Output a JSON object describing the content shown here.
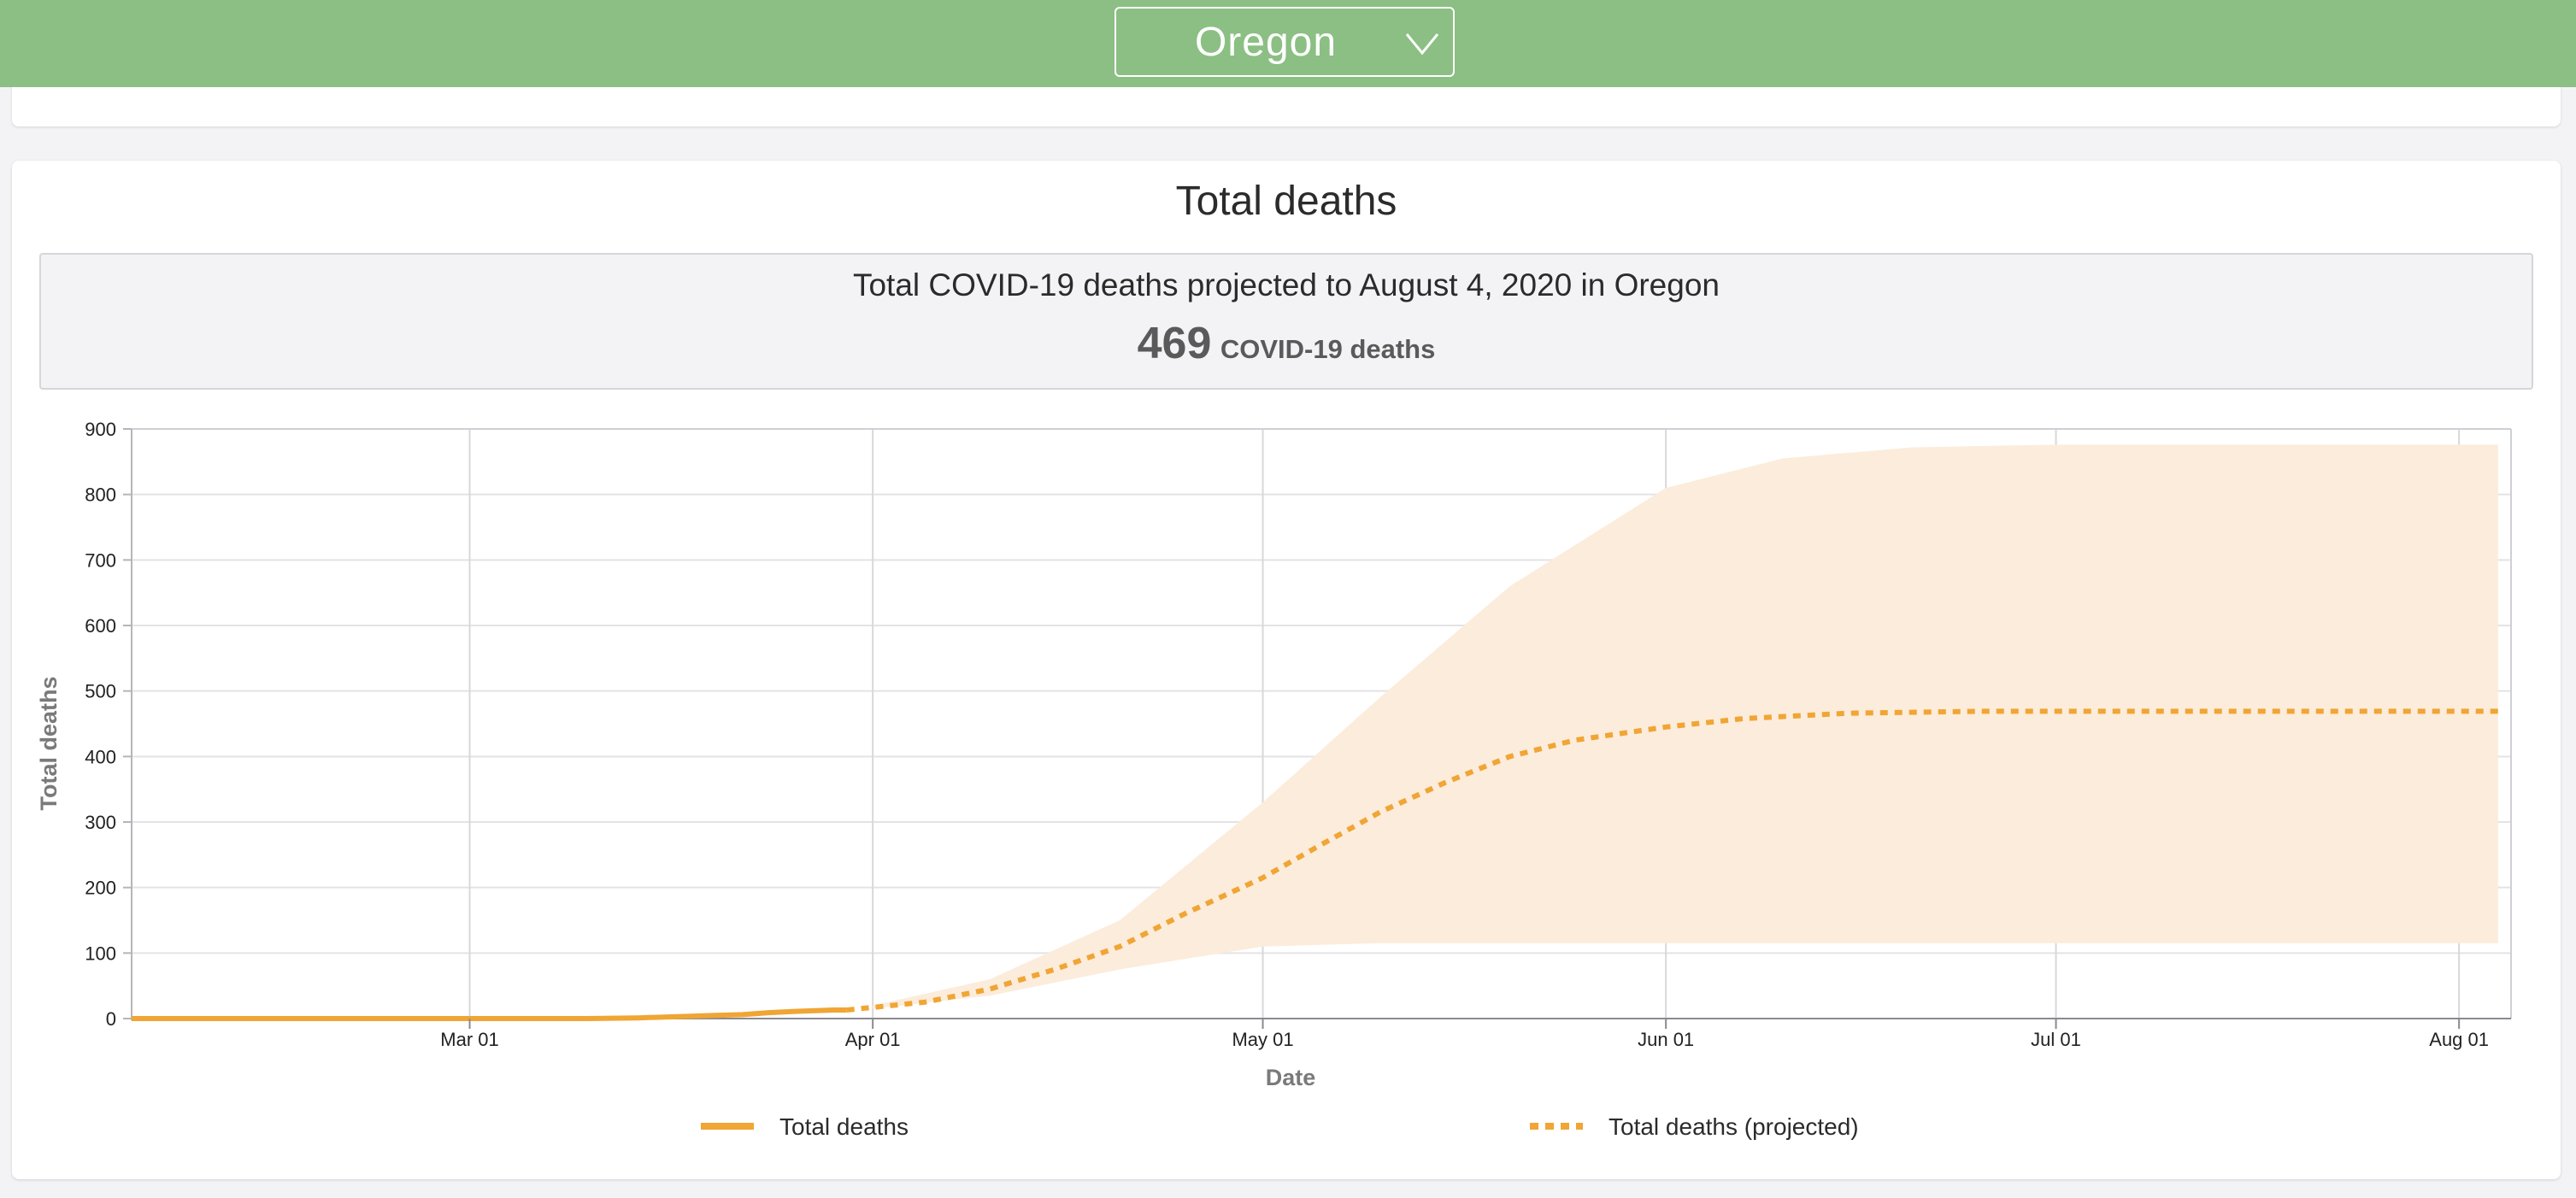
{
  "header": {
    "selected_state": "Oregon",
    "background_color": "#8bbf83"
  },
  "card": {
    "title": "Total deaths",
    "summary_text": "Total COVID-19 deaths projected to August 4, 2020 in Oregon",
    "summary_value": "469",
    "summary_unit": "COVID-19 deaths"
  },
  "chart_data": {
    "type": "line",
    "title": "Total deaths",
    "xlabel": "Date",
    "ylabel": "Total deaths",
    "ylim": [
      0,
      900
    ],
    "yticks": [
      0,
      100,
      200,
      300,
      400,
      500,
      600,
      700,
      800,
      900
    ],
    "x_range": [
      "2020-02-04",
      "2020-08-05"
    ],
    "xticks": [
      {
        "date": "2020-03-01",
        "label": "Mar 01"
      },
      {
        "date": "2020-04-01",
        "label": "Apr 01"
      },
      {
        "date": "2020-05-01",
        "label": "May 01"
      },
      {
        "date": "2020-06-01",
        "label": "Jun 01"
      },
      {
        "date": "2020-07-01",
        "label": "Jul 01"
      },
      {
        "date": "2020-08-01",
        "label": "Aug 01"
      }
    ],
    "grid": true,
    "colors": {
      "line": "#f0a534",
      "band": "#fcecdc"
    },
    "series": [
      {
        "name": "Total deaths",
        "style": "solid",
        "points": [
          [
            "2020-02-04",
            0
          ],
          [
            "2020-03-01",
            0
          ],
          [
            "2020-03-10",
            0
          ],
          [
            "2020-03-14",
            1
          ],
          [
            "2020-03-17",
            3
          ],
          [
            "2020-03-20",
            5
          ],
          [
            "2020-03-22",
            6
          ],
          [
            "2020-03-24",
            9
          ],
          [
            "2020-03-26",
            11
          ],
          [
            "2020-03-29",
            13
          ],
          [
            "2020-03-30",
            13
          ]
        ]
      },
      {
        "name": "Total deaths (projected)",
        "style": "dashed",
        "points": [
          [
            "2020-03-30",
            13
          ],
          [
            "2020-04-05",
            25
          ],
          [
            "2020-04-10",
            45
          ],
          [
            "2020-04-15",
            75
          ],
          [
            "2020-04-20",
            110
          ],
          [
            "2020-04-25",
            160
          ],
          [
            "2020-05-01",
            215
          ],
          [
            "2020-05-05",
            260
          ],
          [
            "2020-05-10",
            315
          ],
          [
            "2020-05-15",
            360
          ],
          [
            "2020-05-20",
            400
          ],
          [
            "2020-05-25",
            425
          ],
          [
            "2020-06-01",
            445
          ],
          [
            "2020-06-07",
            458
          ],
          [
            "2020-06-15",
            466
          ],
          [
            "2020-06-25",
            469
          ],
          [
            "2020-07-05",
            469
          ],
          [
            "2020-08-04",
            469
          ]
        ]
      }
    ],
    "uncertainty_band": {
      "name": "Projection interval",
      "upper": [
        [
          "2020-04-01",
          20
        ],
        [
          "2020-04-10",
          60
        ],
        [
          "2020-04-20",
          150
        ],
        [
          "2020-05-01",
          330
        ],
        [
          "2020-05-10",
          490
        ],
        [
          "2020-05-20",
          660
        ],
        [
          "2020-06-01",
          810
        ],
        [
          "2020-06-10",
          855
        ],
        [
          "2020-06-20",
          872
        ],
        [
          "2020-07-01",
          876
        ],
        [
          "2020-08-04",
          876
        ]
      ],
      "lower": [
        [
          "2020-04-01",
          15
        ],
        [
          "2020-04-10",
          35
        ],
        [
          "2020-04-20",
          75
        ],
        [
          "2020-05-01",
          110
        ],
        [
          "2020-05-10",
          115
        ],
        [
          "2020-06-01",
          115
        ],
        [
          "2020-08-04",
          115
        ]
      ]
    },
    "legend": {
      "placement": "bottom",
      "items": [
        {
          "label": "Total deaths",
          "style": "solid"
        },
        {
          "label": "Total deaths (projected)",
          "style": "dashed"
        }
      ]
    }
  }
}
